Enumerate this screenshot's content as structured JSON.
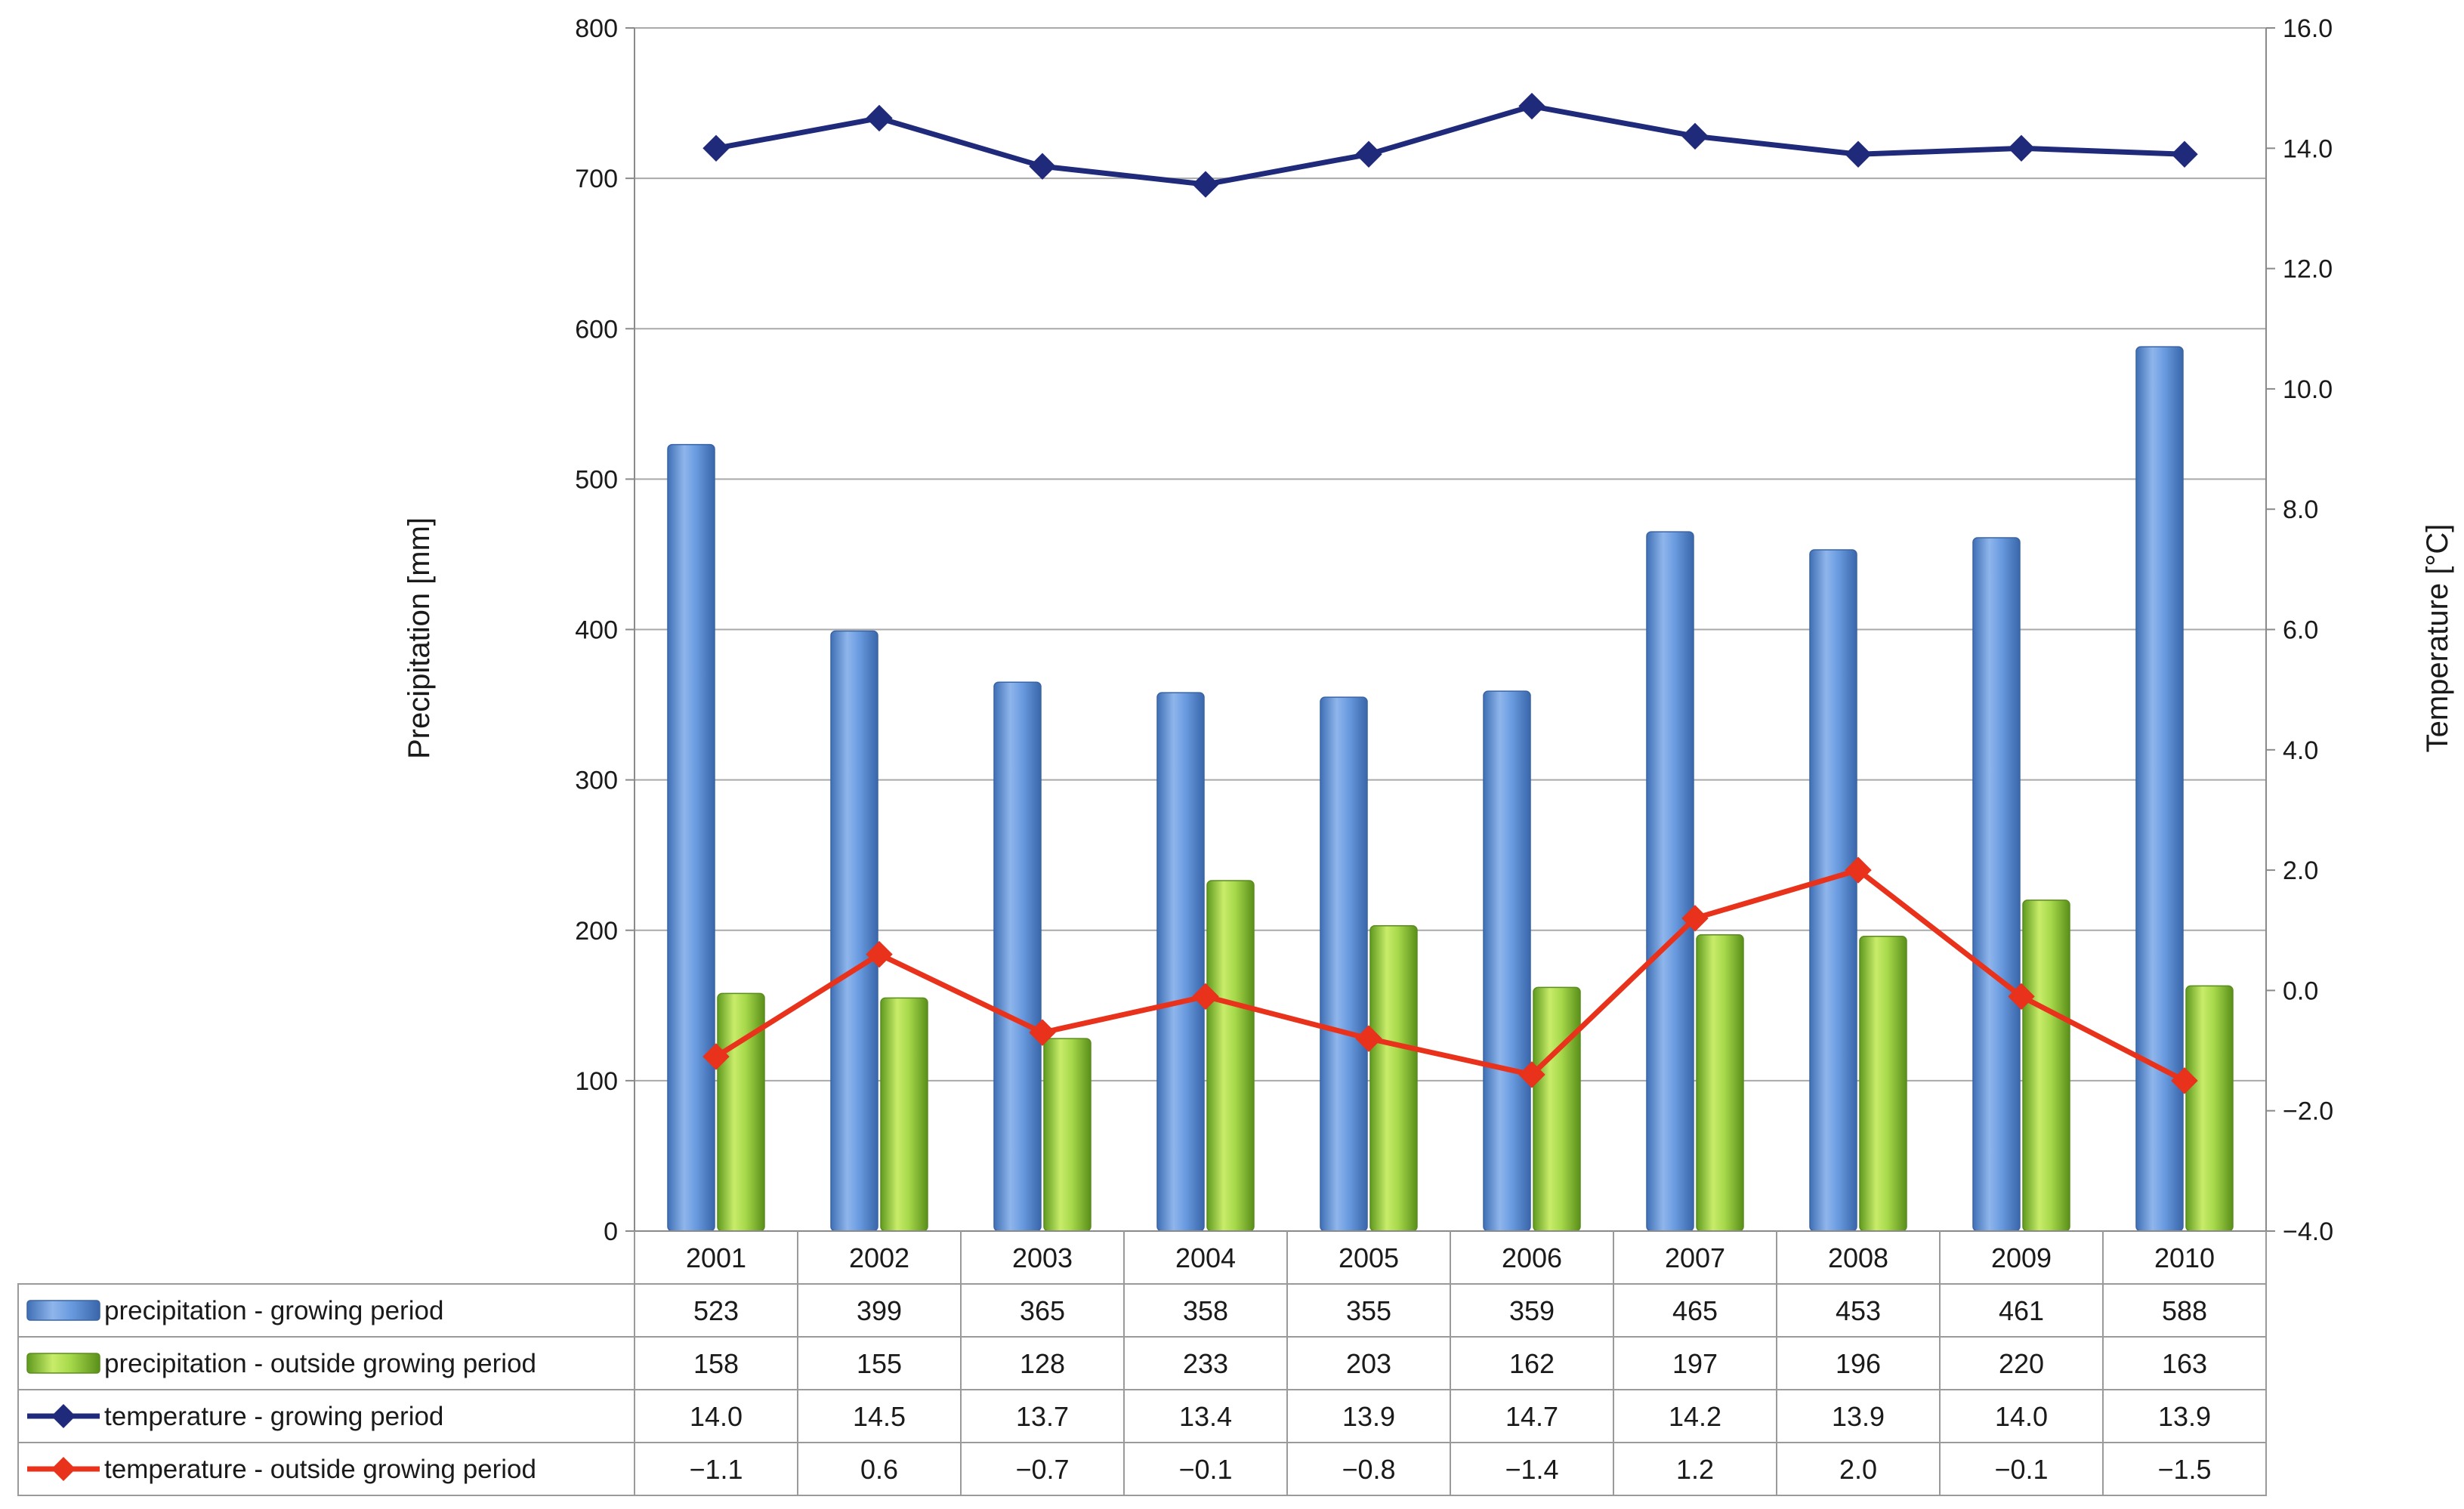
{
  "chart_data": {
    "type": "bar",
    "categories": [
      "2001",
      "2002",
      "2003",
      "2004",
      "2005",
      "2006",
      "2007",
      "2008",
      "2009",
      "2010"
    ],
    "series": [
      {
        "name": "precipitation - growing period",
        "kind": "bar",
        "axis": "left",
        "color": "#5b8fd4",
        "labels": [
          "523",
          "399",
          "365",
          "358",
          "355",
          "359",
          "465",
          "453",
          "461",
          "588"
        ],
        "values": [
          523,
          399,
          365,
          358,
          355,
          359,
          465,
          453,
          461,
          588
        ]
      },
      {
        "name": "precipitation - outside growing period",
        "kind": "bar",
        "axis": "left",
        "color": "#8fc43a",
        "labels": [
          "158",
          "155",
          "128",
          "233",
          "203",
          "162",
          "197",
          "196",
          "220",
          "163"
        ],
        "values": [
          158,
          155,
          128,
          233,
          203,
          162,
          197,
          196,
          220,
          163
        ]
      },
      {
        "name": "temperature - growing period",
        "kind": "line",
        "axis": "right",
        "color": "#1f2a7a",
        "labels": [
          "14.0",
          "14.5",
          "13.7",
          "13.4",
          "13.9",
          "14.7",
          "14.2",
          "13.9",
          "14.0",
          "13.9"
        ],
        "values": [
          14.0,
          14.5,
          13.7,
          13.4,
          13.9,
          14.7,
          14.2,
          13.9,
          14.0,
          13.9
        ]
      },
      {
        "name": "temperature - outside growing period",
        "kind": "line",
        "axis": "right",
        "color": "#e8321c",
        "labels": [
          "−1.1",
          "0.6",
          "−0.7",
          "−0.1",
          "−0.8",
          "−1.4",
          "1.2",
          "2.0",
          "−0.1",
          "−1.5"
        ],
        "values": [
          -1.1,
          0.6,
          -0.7,
          -0.1,
          -0.8,
          -1.4,
          1.2,
          2.0,
          -0.1,
          -1.5
        ]
      }
    ],
    "ylabel": "Precipitation [mm]",
    "y2label": "Temperature  [°C]",
    "ylim": [
      0,
      800
    ],
    "y2lim": [
      -4,
      16
    ],
    "yticks": [
      "0",
      "100",
      "200",
      "300",
      "400",
      "500",
      "600",
      "700",
      "800"
    ],
    "y2ticks": [
      "−4.0",
      "−2.0",
      "0.0",
      "2.0",
      "4.0",
      "6.0",
      "8.0",
      "10.0",
      "12.0",
      "14.0",
      "16.0"
    ],
    "grid": true,
    "legend": "data table below chart"
  }
}
